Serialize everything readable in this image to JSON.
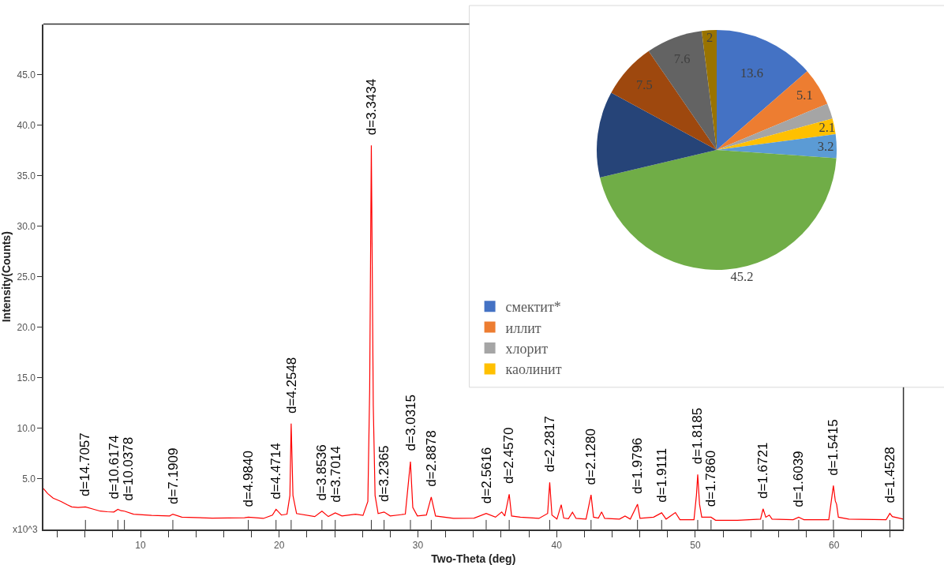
{
  "chart_data": [
    {
      "type": "line",
      "xlabel": "Two-Theta (deg)",
      "ylabel": "Intensity(Counts)",
      "x": [
        3.0,
        3.3,
        3.7,
        4.27,
        4.7,
        5.04,
        5.5,
        6.03,
        6.6,
        7.1,
        7.6,
        8.08,
        8.37,
        8.6,
        8.84,
        9.5,
        10.8,
        12.1,
        12.33,
        12.98,
        15.16,
        17.5,
        17.77,
        18.86,
        19.51,
        19.77,
        20.16,
        20.56,
        20.77,
        20.86,
        20.99,
        21.25,
        22.56,
        23.08,
        23.54,
        24.04,
        24.52,
        25.5,
        26.04,
        26.39,
        26.52,
        26.64,
        26.78,
        26.91,
        27.13,
        27.56,
        28.0,
        29.09,
        29.35,
        29.46,
        29.63,
        29.96,
        30.61,
        30.96,
        31.27,
        32.57,
        34.05,
        34.92,
        35.59,
        36.04,
        36.26,
        36.58,
        36.75,
        37.38,
        38.72,
        39.35,
        39.5,
        39.66,
        40.02,
        40.33,
        40.51,
        40.85,
        41.14,
        41.4,
        42.12,
        42.48,
        42.66,
        43.01,
        43.24,
        43.46,
        44.53,
        44.93,
        45.31,
        45.83,
        46.01,
        46.99,
        47.57,
        47.89,
        48.56,
        48.89,
        49.9,
        50.08,
        50.17,
        50.3,
        50.46,
        51.13,
        51.46,
        53.03,
        54.7,
        54.88,
        55.08,
        55.33,
        55.53,
        57.05,
        57.45,
        57.83,
        59.62,
        59.95,
        60.09,
        60.18,
        60.31,
        61.07,
        63.75,
        64.02,
        64.2,
        65.0
      ],
      "series": [
        {
          "color": "#ff0000",
          "values": [
            4.05,
            3.55,
            3.1,
            2.77,
            2.45,
            2.23,
            2.17,
            2.23,
            2.0,
            1.81,
            1.75,
            1.72,
            1.99,
            1.85,
            1.81,
            1.51,
            1.39,
            1.33,
            1.51,
            1.21,
            1.12,
            1.15,
            1.21,
            1.09,
            1.42,
            1.99,
            1.42,
            1.51,
            3.36,
            10.48,
            3.36,
            1.57,
            1.27,
            1.81,
            1.27,
            1.63,
            1.33,
            1.51,
            1.39,
            2.77,
            13.8,
            38.0,
            12.3,
            3.36,
            1.57,
            1.72,
            1.33,
            1.51,
            5.16,
            6.71,
            2.17,
            1.33,
            1.42,
            3.21,
            1.33,
            1.09,
            1.12,
            1.58,
            1.21,
            1.73,
            1.33,
            3.48,
            1.33,
            1.21,
            1.09,
            1.58,
            4.65,
            1.42,
            1.02,
            2.44,
            1.12,
            1.06,
            1.7,
            1.09,
            1.02,
            3.42,
            1.21,
            1.12,
            1.73,
            1.09,
            1.02,
            1.33,
            1.02,
            2.5,
            1.09,
            1.21,
            1.64,
            1.02,
            1.67,
            0.96,
            0.96,
            3.42,
            5.44,
            2.5,
            1.21,
            1.21,
            0.9,
            0.9,
            1.02,
            2.04,
            1.21,
            1.42,
            1.02,
            0.96,
            1.21,
            0.96,
            0.96,
            4.34,
            2.81,
            2.5,
            1.21,
            1.02,
            0.96,
            1.58,
            1.27,
            1.02
          ]
        }
      ],
      "xlim": [
        3,
        65
      ],
      "ylim": [
        0,
        50
      ],
      "xticks": [
        {
          "value": 4,
          "label": null
        },
        {
          "value": 6,
          "label": null
        },
        {
          "value": 8,
          "label": null
        },
        10,
        {
          "value": 12,
          "label": null
        },
        {
          "value": 14,
          "label": null
        },
        {
          "value": 16,
          "label": null
        },
        {
          "value": 18,
          "label": null
        },
        20,
        {
          "value": 22,
          "label": null
        },
        {
          "value": 24,
          "label": null
        },
        {
          "value": 26,
          "label": null
        },
        {
          "value": 28,
          "label": null
        },
        30,
        {
          "value": 32,
          "label": null
        },
        {
          "value": 34,
          "label": null
        },
        {
          "value": 36,
          "label": null
        },
        {
          "value": 38,
          "label": null
        },
        40,
        {
          "value": 42,
          "label": null
        },
        {
          "value": 44,
          "label": null
        },
        {
          "value": 46,
          "label": null
        },
        {
          "value": 48,
          "label": null
        },
        50,
        {
          "value": 52,
          "label": null
        },
        {
          "value": 54,
          "label": null
        },
        {
          "value": 56,
          "label": null
        },
        {
          "value": 58,
          "label": null
        },
        60,
        {
          "value": 62,
          "label": null
        },
        {
          "value": 64,
          "label": null
        }
      ],
      "yticks": [
        {
          "value": 5,
          "label": "5.0"
        },
        {
          "value": 10,
          "label": "10.0"
        },
        {
          "value": 15,
          "label": "15.0"
        },
        {
          "value": 20,
          "label": "20.0"
        },
        {
          "value": 25,
          "label": "25.0"
        },
        {
          "value": 30,
          "label": "30.0"
        },
        {
          "value": 35,
          "label": "35.0"
        },
        {
          "value": 40,
          "label": "40.0"
        },
        {
          "value": 45,
          "label": "45.0"
        }
      ],
      "annotations": [
        "x10^3",
        {
          "text": "d=14.7057",
          "x": 6.03,
          "y": 2.23
        },
        {
          "text": "d=10.6174",
          "x": 8.37,
          "y": 1.99
        },
        {
          "text": "d=10.0378",
          "x": 8.84,
          "y": 1.81
        },
        {
          "text": "d=7.1909",
          "x": 12.33,
          "y": 1.51
        },
        {
          "text": "d=4.9840",
          "x": 17.77,
          "y": 1.21
        },
        {
          "text": "d=4.4714",
          "x": 19.77,
          "y": 1.99
        },
        {
          "text": "d=4.2548",
          "x": 20.86,
          "y": 10.48
        },
        {
          "text": "d=3.8536",
          "x": 23.08,
          "y": 1.81
        },
        {
          "text": "d=3.7014",
          "x": 24.04,
          "y": 1.63
        },
        {
          "text": "d=3.3434",
          "x": 26.64,
          "y": 38.0
        },
        {
          "text": "d=3.2365",
          "x": 27.56,
          "y": 1.72
        },
        {
          "text": "d=3.0315",
          "x": 29.46,
          "y": 6.71
        },
        {
          "text": "d=2.8878",
          "x": 30.96,
          "y": 3.21
        },
        {
          "text": "d=2.5616",
          "x": 34.92,
          "y": 1.58
        },
        {
          "text": "d=2.4570",
          "x": 36.58,
          "y": 3.48
        },
        {
          "text": "d=2.2817",
          "x": 39.5,
          "y": 4.65
        },
        {
          "text": "d=2.1280",
          "x": 42.48,
          "y": 3.42
        },
        {
          "text": "d=1.9796",
          "x": 45.83,
          "y": 2.5
        },
        {
          "text": "d=1.9111",
          "x": 47.57,
          "y": 1.64
        },
        {
          "text": "d=1.8185",
          "x": 50.17,
          "y": 5.44
        },
        {
          "text": "d=1.7860",
          "x": 51.13,
          "y": 1.21
        },
        {
          "text": "d=1.6721",
          "x": 54.88,
          "y": 2.04
        },
        {
          "text": "d=1.6039",
          "x": 57.45,
          "y": 1.21
        },
        {
          "text": "d=1.5415",
          "x": 59.95,
          "y": 4.34
        },
        {
          "text": "d=1.4528",
          "x": 64.02,
          "y": 1.58
        }
      ]
    },
    {
      "type": "pie",
      "categories": [
        "смектит*",
        "иллит",
        "хлорит",
        "каолинит",
        null,
        null,
        null,
        null,
        null,
        null
      ],
      "values": [
        13.6,
        5.1,
        2.1,
        2.1,
        3.2,
        45.2,
        11.6,
        7.5,
        7.6,
        2
      ],
      "colors": [
        "#4472c4",
        "#ed7d31",
        "#a5a5a5",
        "#ffc000",
        "#5b9bd5",
        "#70ad47",
        "#264478",
        "#9e480e",
        "#636363",
        "#997300"
      ],
      "value_labels": [
        "13.6",
        "5.1",
        null,
        "2.1",
        "3.2",
        "45.2",
        null,
        "7.5",
        "7.6",
        "2"
      ],
      "legend": "bottom left"
    }
  ]
}
